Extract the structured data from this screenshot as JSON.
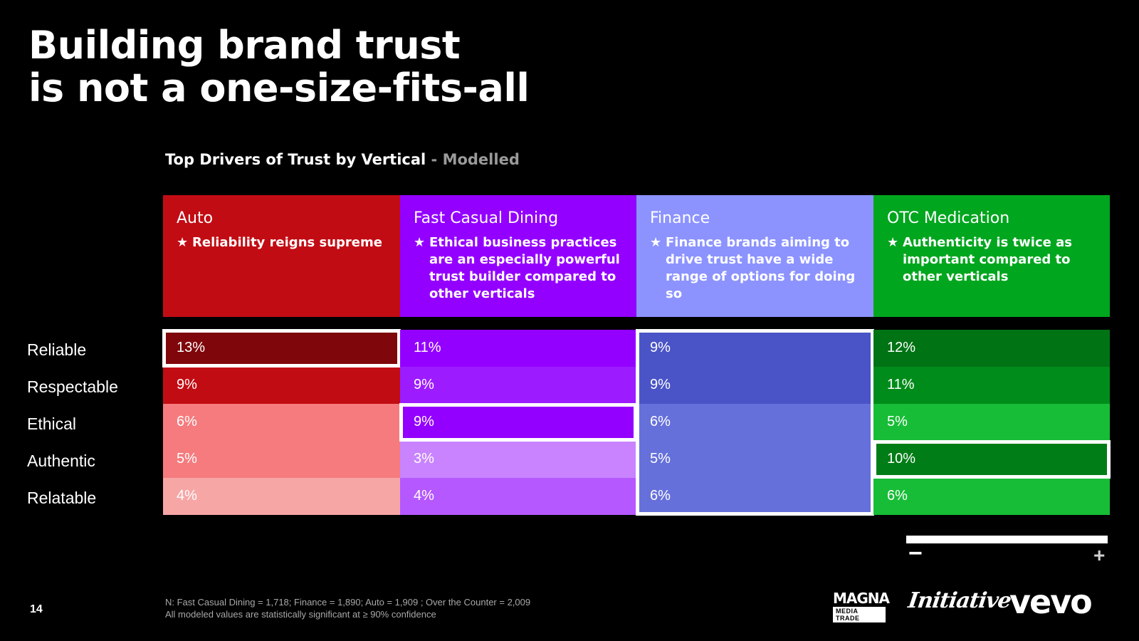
{
  "slide": {
    "title_line1": "Building brand trust",
    "title_line2": "is not a one-size-fits-all",
    "subtitle_main": "Top Drivers of Trust by Vertical",
    "subtitle_sep": " - ",
    "subtitle_muted": "Modelled",
    "page_number": "14",
    "footnote_1": "N: Fast Casual Dining = 1,718; Finance = 1,890; Auto = 1,909 ; Over the Counter = 2,009",
    "footnote_2": "All modeled values are statistically significant at ≥ 90% confidence",
    "scale_minus": "−",
    "scale_plus": "+",
    "logos": {
      "magna_top": "MAGNA",
      "magna_bottom": "MEDIA TRADE",
      "initiative": "Initiative",
      "vevo": "vevo"
    }
  },
  "chart_data": {
    "type": "heatmap",
    "title": "Top Drivers of Trust by Vertical - Modelled",
    "rows": [
      "Reliable",
      "Respectable",
      "Ethical",
      "Authentic",
      "Relatable"
    ],
    "columns": [
      {
        "name": "Auto",
        "note": "Reliability reigns supreme",
        "header_color": "#c20c14",
        "values": [
          "13%",
          "9%",
          "6%",
          "5%",
          "4%"
        ],
        "cell_colors": [
          "#7f060b",
          "#c20c14",
          "#f57b7e",
          "#f57b7e",
          "#f7a6a6"
        ],
        "highlight_rows": [
          "Reliable"
        ]
      },
      {
        "name": "Fast Casual Dining",
        "note": "Ethical business practices are an especially powerful trust builder compared to other verticals",
        "header_color": "#9400ff",
        "values": [
          "11%",
          "9%",
          "9%",
          "3%",
          "4%"
        ],
        "cell_colors": [
          "#9400ff",
          "#9c1cff",
          "#9400ff",
          "#c983ff",
          "#b558ff"
        ],
        "highlight_rows": [
          "Ethical"
        ]
      },
      {
        "name": "Finance",
        "note": "Finance brands aiming to drive trust have a wide range of options for doing so",
        "header_color": "#8c93ff",
        "values": [
          "9%",
          "9%",
          "6%",
          "5%",
          "6%"
        ],
        "cell_colors": [
          "#4a54c7",
          "#4a54c7",
          "#6670db",
          "#6670db",
          "#6670db"
        ],
        "highlight_rows": [
          "Reliable",
          "Respectable",
          "Ethical",
          "Authentic",
          "Relatable"
        ]
      },
      {
        "name": "OTC Medication",
        "note": "Authenticity is twice as important compared to other verticals",
        "header_color": "#00a61e",
        "values": [
          "12%",
          "11%",
          "5%",
          "10%",
          "6%"
        ],
        "cell_colors": [
          "#007314",
          "#008c1a",
          "#17bd36",
          "#007d17",
          "#17bd36"
        ],
        "highlight_rows": [
          "Authentic"
        ]
      }
    ],
    "scale": {
      "low": "−",
      "high": "+"
    }
  }
}
